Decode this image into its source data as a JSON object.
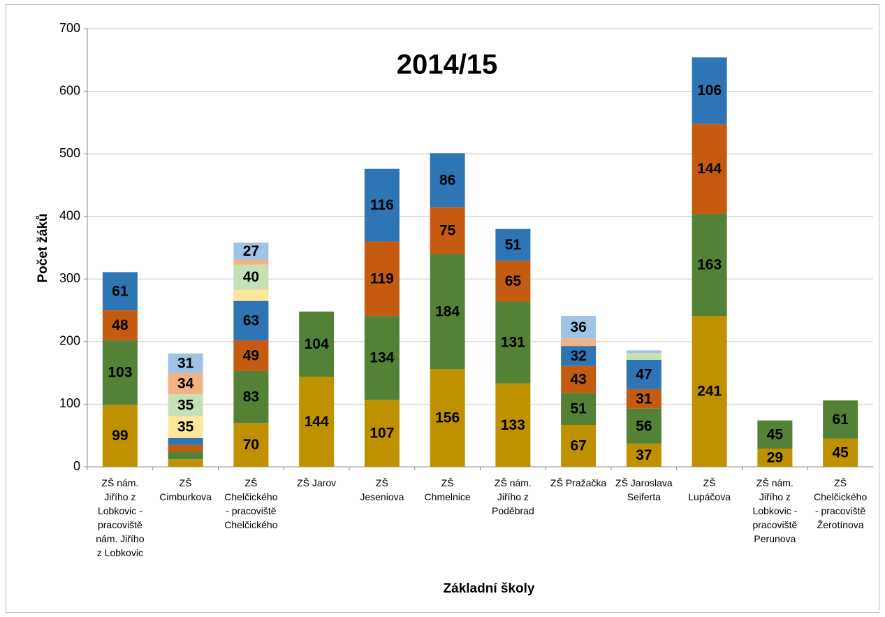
{
  "chart_data": {
    "type": "bar",
    "stacked": true,
    "title": "2014/15",
    "x_label": "Základní školy",
    "y_label": "Počet žáků",
    "categories": [
      "ZŠ nám.\nJiřího z\nLobkovic -\npracoviště\nnám. Jiřího\nz Lobkovic",
      "ZŠ\nCimburkova",
      "ZŠ\nChelčického\n- pracoviště\nChelčického",
      "ZŠ Jarov",
      "ZŠ\nJeseniova",
      "ZŠ\nChmelnice",
      "ZŠ nám.\nJiřího z\nPoděbrad",
      "ZŠ Pražačka",
      "ZŠ Jaroslava\nSeiferta",
      "ZŠ\nLupáčova",
      "ZŠ nám.\nJiřího z\nLobkovic -\npracoviště\nPerunova",
      "ZŠ\nChelčického\n- pracoviště\nŽerotínova"
    ],
    "series": [
      {
        "color": "#bf9000",
        "values": [
          99,
          12,
          70,
          144,
          107,
          156,
          133,
          67,
          37,
          241,
          29,
          45
        ]
      },
      {
        "color": "#538135",
        "values": [
          103,
          12,
          83,
          104,
          134,
          184,
          131,
          51,
          56,
          163,
          45,
          61
        ]
      },
      {
        "color": "#c55a11",
        "values": [
          48,
          11,
          49,
          null,
          119,
          75,
          65,
          43,
          31,
          144,
          null,
          null
        ]
      },
      {
        "color": "#2e75b6",
        "values": [
          61,
          11,
          63,
          null,
          116,
          86,
          51,
          32,
          47,
          106,
          null,
          null
        ]
      },
      {
        "color": "#ffe699",
        "values": [
          null,
          35,
          18,
          null,
          null,
          null,
          null,
          null,
          null,
          null,
          null,
          null
        ]
      },
      {
        "color": "#c5e0b4",
        "values": [
          null,
          35,
          40,
          null,
          null,
          null,
          null,
          null,
          11,
          null,
          null,
          null
        ]
      },
      {
        "color": "#f4b183",
        "values": [
          null,
          34,
          8,
          null,
          null,
          null,
          null,
          12,
          null,
          null,
          null,
          null
        ]
      },
      {
        "color": "#9dc3e6",
        "values": [
          null,
          31,
          27,
          null,
          null,
          null,
          null,
          36,
          4,
          null,
          null,
          null
        ]
      }
    ],
    "ylim": [
      0,
      700
    ],
    "yticks": [
      0,
      100,
      200,
      300,
      400,
      500,
      600,
      700
    ],
    "grid": true
  }
}
